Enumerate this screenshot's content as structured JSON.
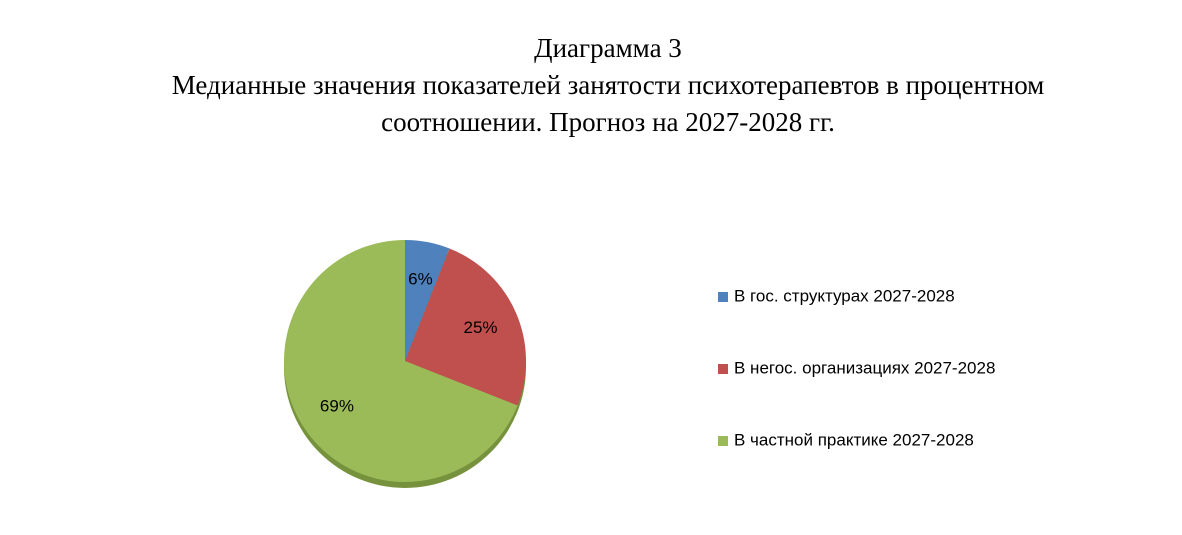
{
  "chart_data": {
    "type": "pie",
    "title": "Диаграмма 3",
    "subtitle": "Медианные значения показателей занятости психотерапевтов в процентном соотношении. Прогноз на 2027-2028 гг.",
    "categories": [
      "В гос. структурах 2027-2028",
      "В негос. организациях 2027-2028",
      "В частной практике 2027-2028"
    ],
    "values": [
      6,
      25,
      69
    ],
    "value_labels": [
      "6%",
      "25%",
      "69%"
    ],
    "colors": [
      "#4f81bd",
      "#c0504d",
      "#9bbb59"
    ],
    "legend": "right"
  }
}
